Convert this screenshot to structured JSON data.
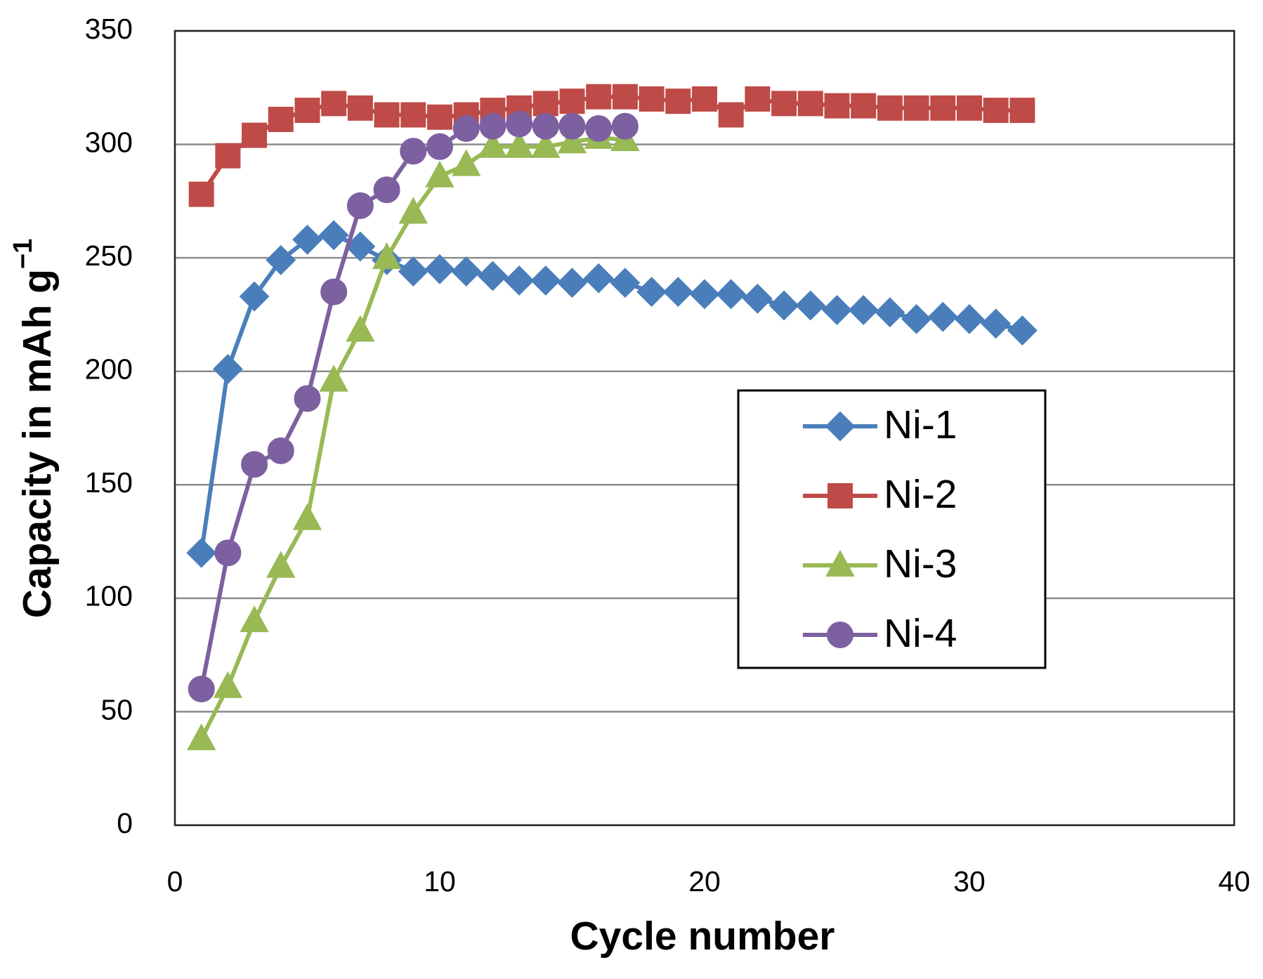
{
  "chart_data": {
    "type": "line",
    "x_label": "Cycle number",
    "y_label": "Capacity in mAh g",
    "y_label_sup": "−1",
    "xlim": [
      0,
      40
    ],
    "xticks": [
      0,
      10,
      20,
      30,
      40
    ],
    "ylim": [
      0,
      350
    ],
    "yticks": [
      0,
      50,
      100,
      150,
      200,
      250,
      300,
      350
    ],
    "grid": true,
    "legend": "center-right",
    "series": [
      {
        "name": "Ni-1",
        "color": "#4a7ebb",
        "marker": "diamond",
        "x": [
          1,
          2,
          3,
          4,
          5,
          6,
          7,
          8,
          9,
          10,
          11,
          12,
          13,
          14,
          15,
          16,
          17,
          18,
          19,
          20,
          21,
          22,
          23,
          24,
          25,
          26,
          27,
          28,
          29,
          30,
          31,
          32
        ],
        "values": [
          120,
          201,
          233,
          249,
          258,
          260,
          255,
          249,
          244,
          245,
          244,
          242,
          240,
          240,
          239,
          241,
          239,
          235,
          235,
          234,
          234,
          232,
          229,
          229,
          227,
          227,
          226,
          223,
          224,
          223,
          221,
          218
        ]
      },
      {
        "name": "Ni-2",
        "color": "#be4b48",
        "marker": "square",
        "x": [
          1,
          2,
          3,
          4,
          5,
          6,
          7,
          8,
          9,
          10,
          11,
          12,
          13,
          14,
          15,
          16,
          17,
          18,
          19,
          20,
          21,
          22,
          23,
          24,
          25,
          26,
          27,
          28,
          29,
          30,
          31,
          32
        ],
        "values": [
          278,
          295,
          304,
          311,
          315,
          318,
          316,
          313,
          313,
          312,
          313,
          315,
          316,
          318,
          319,
          321,
          321,
          320,
          319,
          320,
          313,
          320,
          318,
          318,
          317,
          317,
          316,
          316,
          316,
          316,
          315,
          315
        ]
      },
      {
        "name": "Ni-3",
        "color": "#98b954",
        "marker": "triangle",
        "x": [
          1,
          2,
          3,
          4,
          5,
          6,
          7,
          8,
          9,
          10,
          11,
          12,
          13,
          14,
          15,
          16,
          17
        ],
        "values": [
          38,
          61,
          90,
          114,
          135,
          196,
          218,
          250,
          270,
          286,
          291,
          299,
          299,
          299,
          301,
          303,
          302
        ]
      },
      {
        "name": "Ni-4",
        "color": "#7d60a0",
        "marker": "circle",
        "x": [
          1,
          2,
          3,
          4,
          5,
          6,
          7,
          8,
          9,
          10,
          11,
          12,
          13,
          14,
          15,
          16,
          17
        ],
        "values": [
          60,
          120,
          159,
          165,
          188,
          235,
          273,
          280,
          297,
          299,
          307,
          308,
          309,
          308,
          308,
          307,
          308
        ]
      }
    ]
  }
}
